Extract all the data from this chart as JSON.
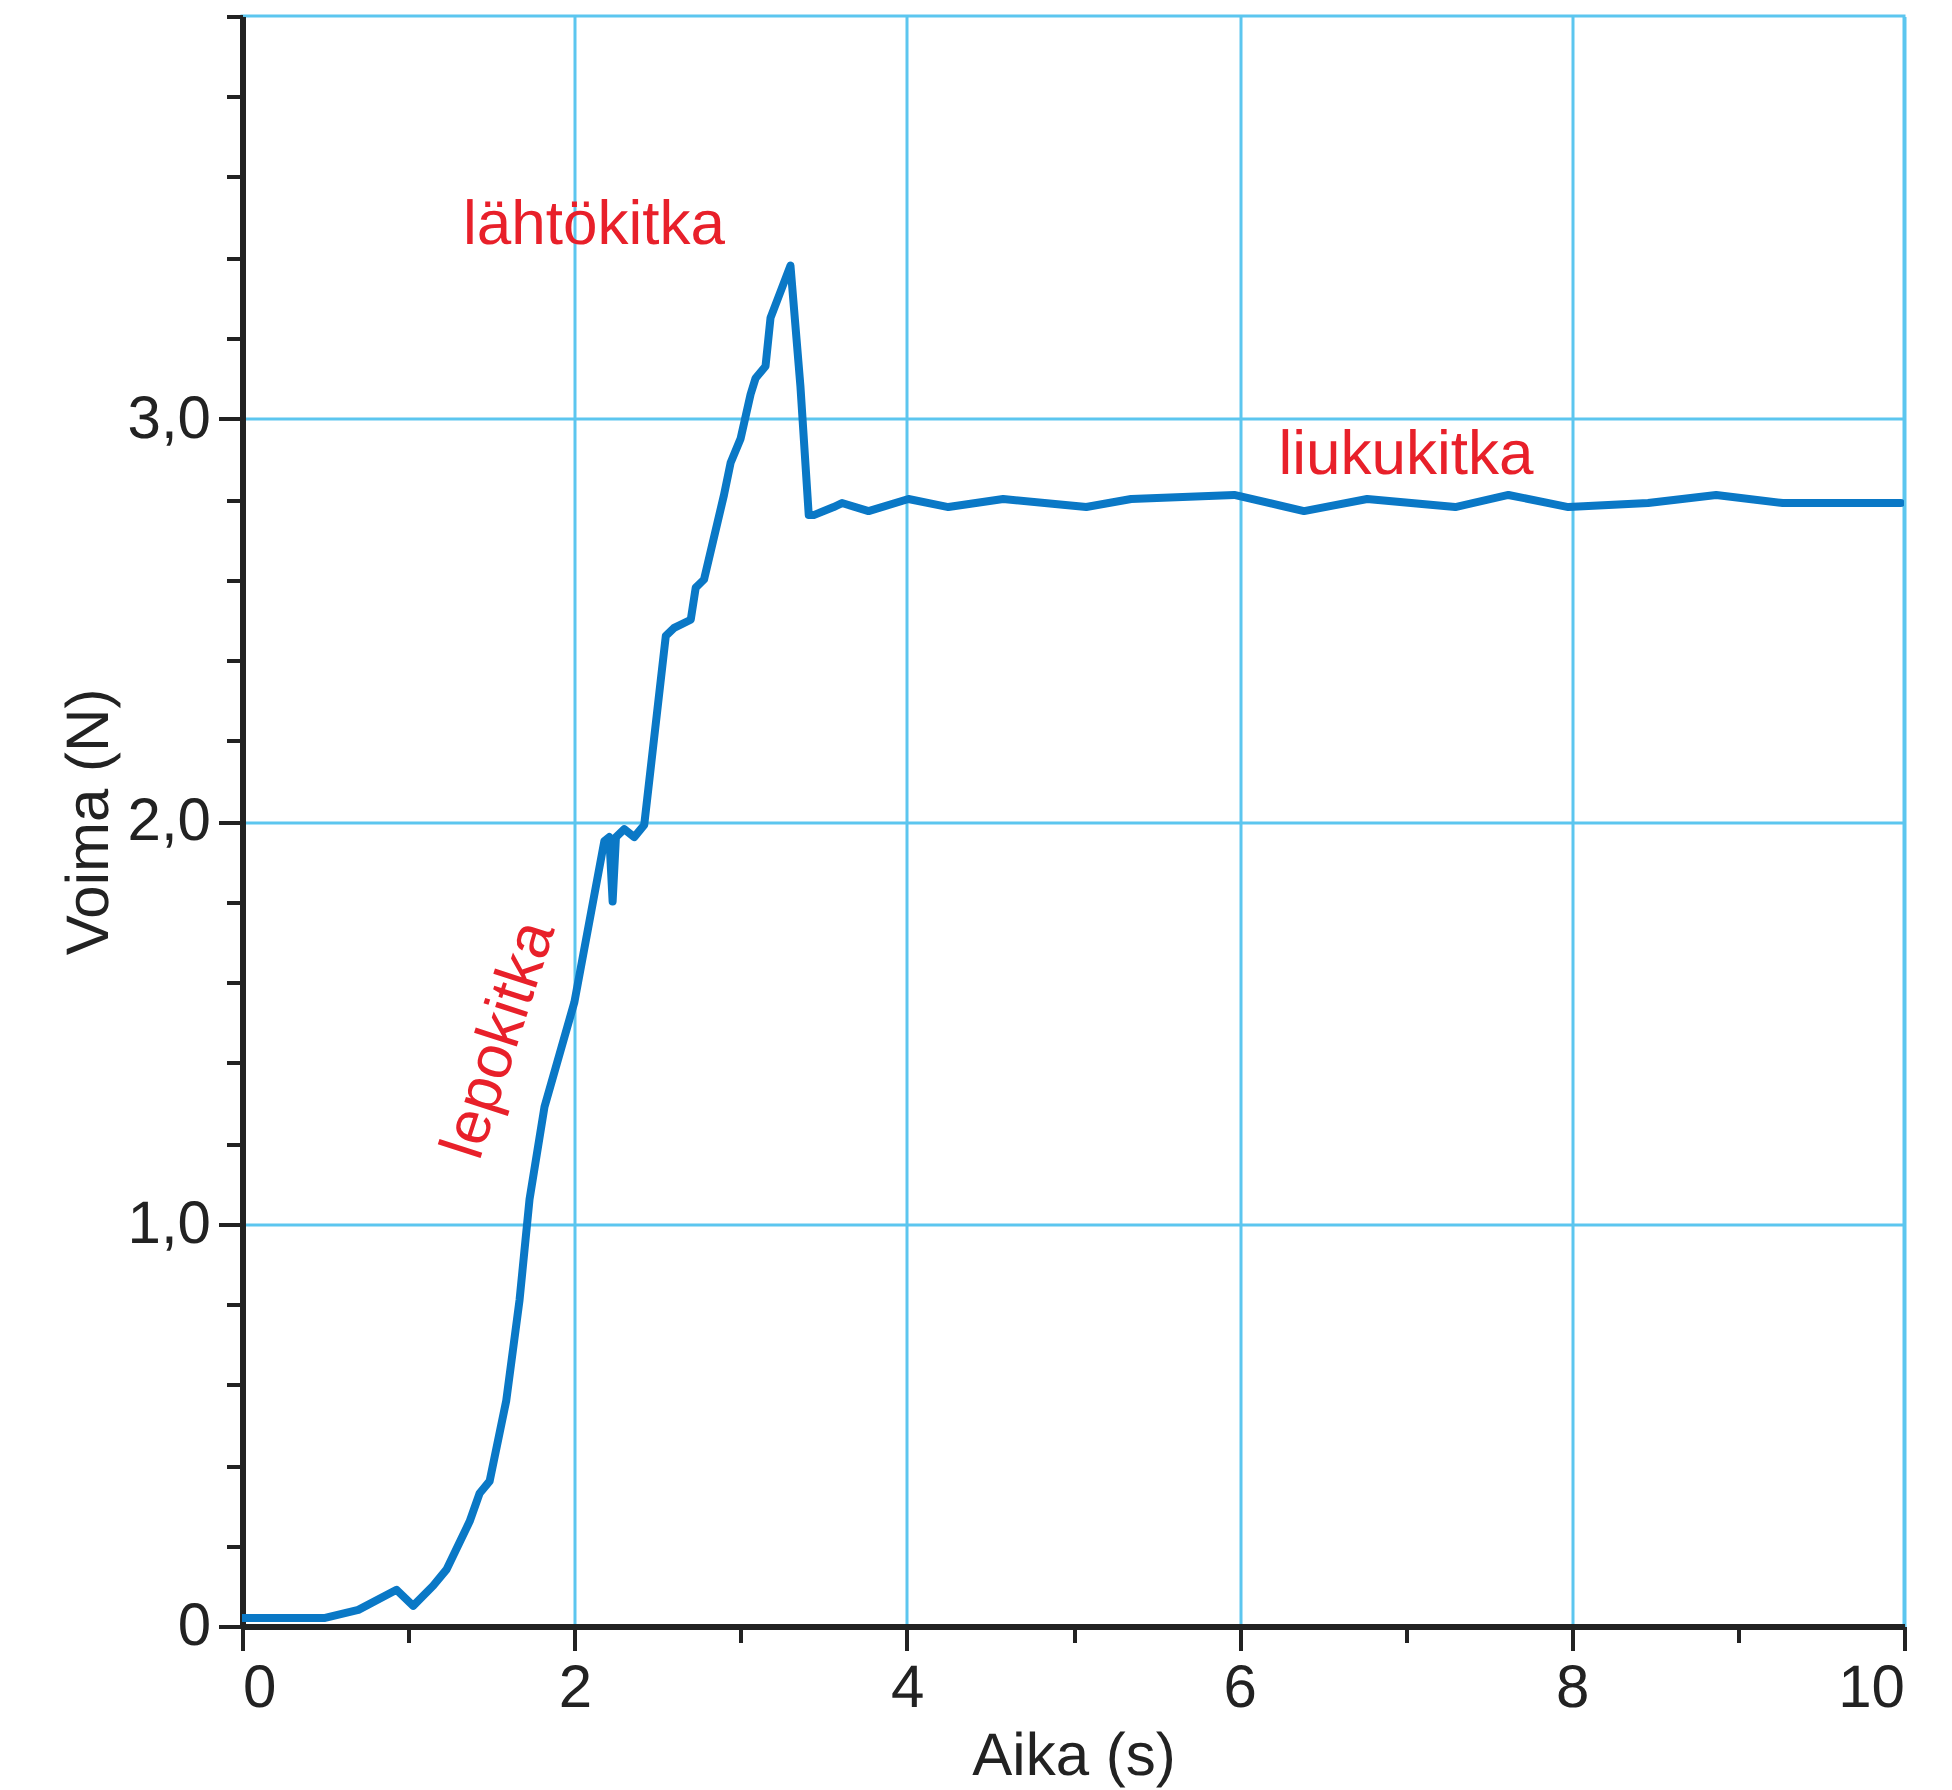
{
  "chart_data": {
    "type": "line",
    "xlabel": "Aika (s)",
    "ylabel": "Voima (N)",
    "xlim": [
      0,
      10
    ],
    "ylim": [
      0,
      4
    ],
    "xticks": [
      0,
      {
        "value": 1,
        "label": null
      },
      2,
      {
        "value": 3,
        "label": null
      },
      4,
      {
        "value": 5,
        "label": null
      },
      6,
      {
        "value": 7,
        "label": null
      },
      8,
      {
        "value": 9,
        "label": null
      },
      10
    ],
    "yticks": [
      0,
      {
        "value": 0.2,
        "label": null
      },
      {
        "value": 0.4,
        "label": null
      },
      {
        "value": 0.6,
        "label": null
      },
      {
        "value": 0.8,
        "label": null
      },
      {
        "value": 1,
        "label": "1,0"
      },
      {
        "value": 1.2,
        "label": null
      },
      {
        "value": 1.4,
        "label": null
      },
      {
        "value": 1.6,
        "label": null
      },
      {
        "value": 1.8,
        "label": null
      },
      {
        "value": 2,
        "label": "2,0"
      },
      {
        "value": 2.2,
        "label": null
      },
      {
        "value": 2.4,
        "label": null
      },
      {
        "value": 2.6,
        "label": null
      },
      {
        "value": 2.8,
        "label": null
      },
      {
        "value": 3,
        "label": "3,0"
      },
      {
        "value": 3.2,
        "label": null
      },
      {
        "value": 3.4,
        "label": null
      },
      {
        "value": 3.6,
        "label": null
      },
      {
        "value": 3.8,
        "label": null
      },
      {
        "value": 4,
        "label": null
      }
    ],
    "grid": true,
    "marker": "none",
    "line_style": "solid",
    "series": [
      {
        "color": "#0a78c6",
        "x": [
          0,
          0.5,
          0.7,
          0.93,
          1.03,
          1.15,
          1.23,
          1.37,
          1.43,
          1.49,
          1.59,
          1.67,
          1.73,
          1.82,
          2.0,
          2.18,
          2.21,
          2.23,
          2.25,
          2.3,
          2.36,
          2.42,
          2.55,
          2.6,
          2.7,
          2.73,
          2.78,
          2.9,
          2.94,
          3.0,
          3.06,
          3.09,
          3.15,
          3.18,
          3.3,
          3.36,
          3.41,
          3.44,
          3.56,
          3.61,
          3.77,
          4.01,
          4.25,
          4.58,
          5.08,
          5.35,
          5.97,
          6.39,
          6.77,
          7.3,
          7.62,
          7.98,
          8.46,
          8.87,
          9.27,
          9.98
        ],
        "values": [
          0.02,
          0.02,
          0.04,
          0.09,
          0.05,
          0.1,
          0.14,
          0.26,
          0.33,
          0.36,
          0.56,
          0.81,
          1.06,
          1.29,
          1.55,
          1.95,
          1.96,
          1.8,
          1.96,
          1.98,
          1.96,
          1.99,
          2.46,
          2.48,
          2.5,
          2.58,
          2.6,
          2.81,
          2.89,
          2.95,
          3.06,
          3.1,
          3.13,
          3.25,
          3.38,
          3.08,
          2.76,
          2.76,
          2.78,
          2.79,
          2.77,
          2.8,
          2.78,
          2.8,
          2.78,
          2.8,
          2.81,
          2.77,
          2.8,
          2.78,
          2.81,
          2.78,
          2.79,
          2.81,
          2.79,
          2.79
        ]
      }
    ],
    "annotations": [
      "lähtökitka",
      "lepokitka",
      "liukukitka"
    ]
  }
}
